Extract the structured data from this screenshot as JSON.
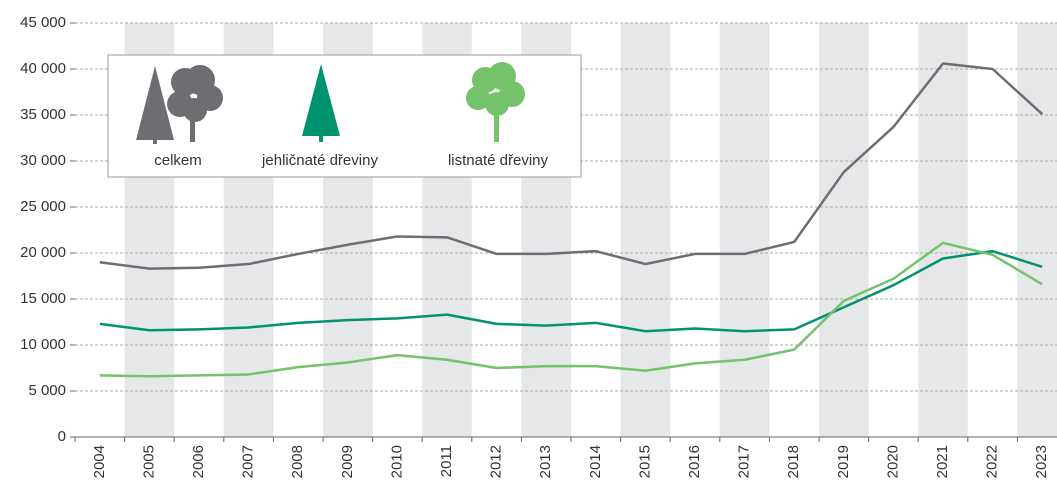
{
  "chart_data": {
    "type": "line",
    "categories": [
      "2004",
      "2005",
      "2006",
      "2007",
      "2008",
      "2009",
      "2010",
      "2011",
      "2012",
      "2013",
      "2014",
      "2015",
      "2016",
      "2017",
      "2018",
      "2019",
      "2020",
      "2021",
      "2022",
      "2023"
    ],
    "series": [
      {
        "name": "celkem",
        "color": "#6d6e71",
        "values": [
          19000,
          18300,
          18400,
          18800,
          19900,
          20900,
          21800,
          21700,
          19900,
          19900,
          20200,
          18800,
          19900,
          19900,
          21200,
          28800,
          33700,
          40600,
          40000,
          35100
        ]
      },
      {
        "name": "jehličnaté dřeviny",
        "color": "#00936f",
        "values": [
          12300,
          11600,
          11700,
          11900,
          12400,
          12700,
          12900,
          13300,
          12300,
          12100,
          12400,
          11500,
          11800,
          11500,
          11700,
          14100,
          16500,
          19400,
          20200,
          18500
        ]
      },
      {
        "name": "listnaté dřeviny",
        "color": "#74c26a",
        "values": [
          6700,
          6600,
          6700,
          6800,
          7600,
          8100,
          8900,
          8400,
          7500,
          7700,
          7700,
          7200,
          8000,
          8400,
          9500,
          14800,
          17200,
          21100,
          19800,
          16600
        ]
      }
    ],
    "ylim": [
      0,
      45000
    ],
    "yticks": [
      0,
      {
        "value": 5000,
        "label": "5 000"
      },
      {
        "value": 10000,
        "label": "10 000"
      },
      {
        "value": 15000,
        "label": "15 000"
      },
      {
        "value": 20000,
        "label": "20 000"
      },
      {
        "value": 25000,
        "label": "25 000"
      },
      {
        "value": 30000,
        "label": "30 000"
      },
      {
        "value": 35000,
        "label": "35 000"
      },
      {
        "value": 40000,
        "label": "40 000"
      },
      {
        "value": 45000,
        "label": "45 000"
      }
    ],
    "grid": true
  }
}
